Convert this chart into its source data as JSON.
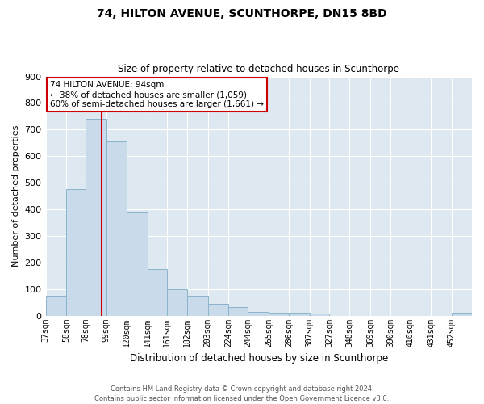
{
  "title": "74, HILTON AVENUE, SCUNTHORPE, DN15 8BD",
  "subtitle": "Size of property relative to detached houses in Scunthorpe",
  "xlabel": "Distribution of detached houses by size in Scunthorpe",
  "ylabel": "Number of detached properties",
  "bins": [
    "37sqm",
    "58sqm",
    "78sqm",
    "99sqm",
    "120sqm",
    "141sqm",
    "161sqm",
    "182sqm",
    "203sqm",
    "224sqm",
    "244sqm",
    "265sqm",
    "286sqm",
    "307sqm",
    "327sqm",
    "348sqm",
    "369sqm",
    "390sqm",
    "410sqm",
    "431sqm",
    "452sqm"
  ],
  "values": [
    75,
    475,
    740,
    655,
    390,
    175,
    100,
    75,
    45,
    33,
    15,
    11,
    10,
    7,
    0,
    0,
    0,
    0,
    0,
    0,
    10
  ],
  "bar_color": "#c9daea",
  "bar_edge_color": "#8ab4cc",
  "property_line_x": 94,
  "property_line_label": "74 HILTON AVENUE: 94sqm",
  "annotation_line1": "← 38% of detached houses are smaller (1,059)",
  "annotation_line2": "60% of semi-detached houses are larger (1,661) →",
  "annotation_box_facecolor": "#ffffff",
  "annotation_box_edgecolor": "#cc0000",
  "vline_color": "#cc0000",
  "ylim": [
    0,
    900
  ],
  "yticks": [
    0,
    100,
    200,
    300,
    400,
    500,
    600,
    700,
    800,
    900
  ],
  "bg_color": "#dde8f0",
  "footer_line1": "Contains HM Land Registry data © Crown copyright and database right 2024.",
  "footer_line2": "Contains public sector information licensed under the Open Government Licence v3.0."
}
